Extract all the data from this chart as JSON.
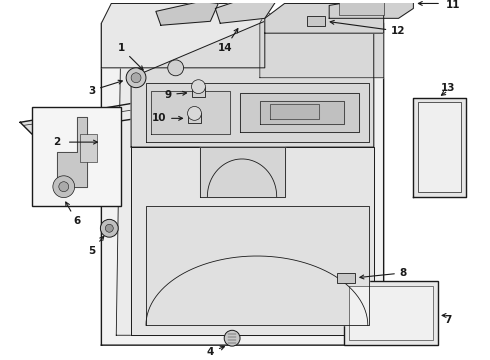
{
  "background_color": "#ffffff",
  "line_color": "#1a1a1a",
  "label_fontsize": 7.5,
  "fill_panel": "#f2f2f2",
  "fill_inner": "#e8e8e8",
  "fill_dark": "#d0d0d0",
  "fill_white": "#fafafa"
}
